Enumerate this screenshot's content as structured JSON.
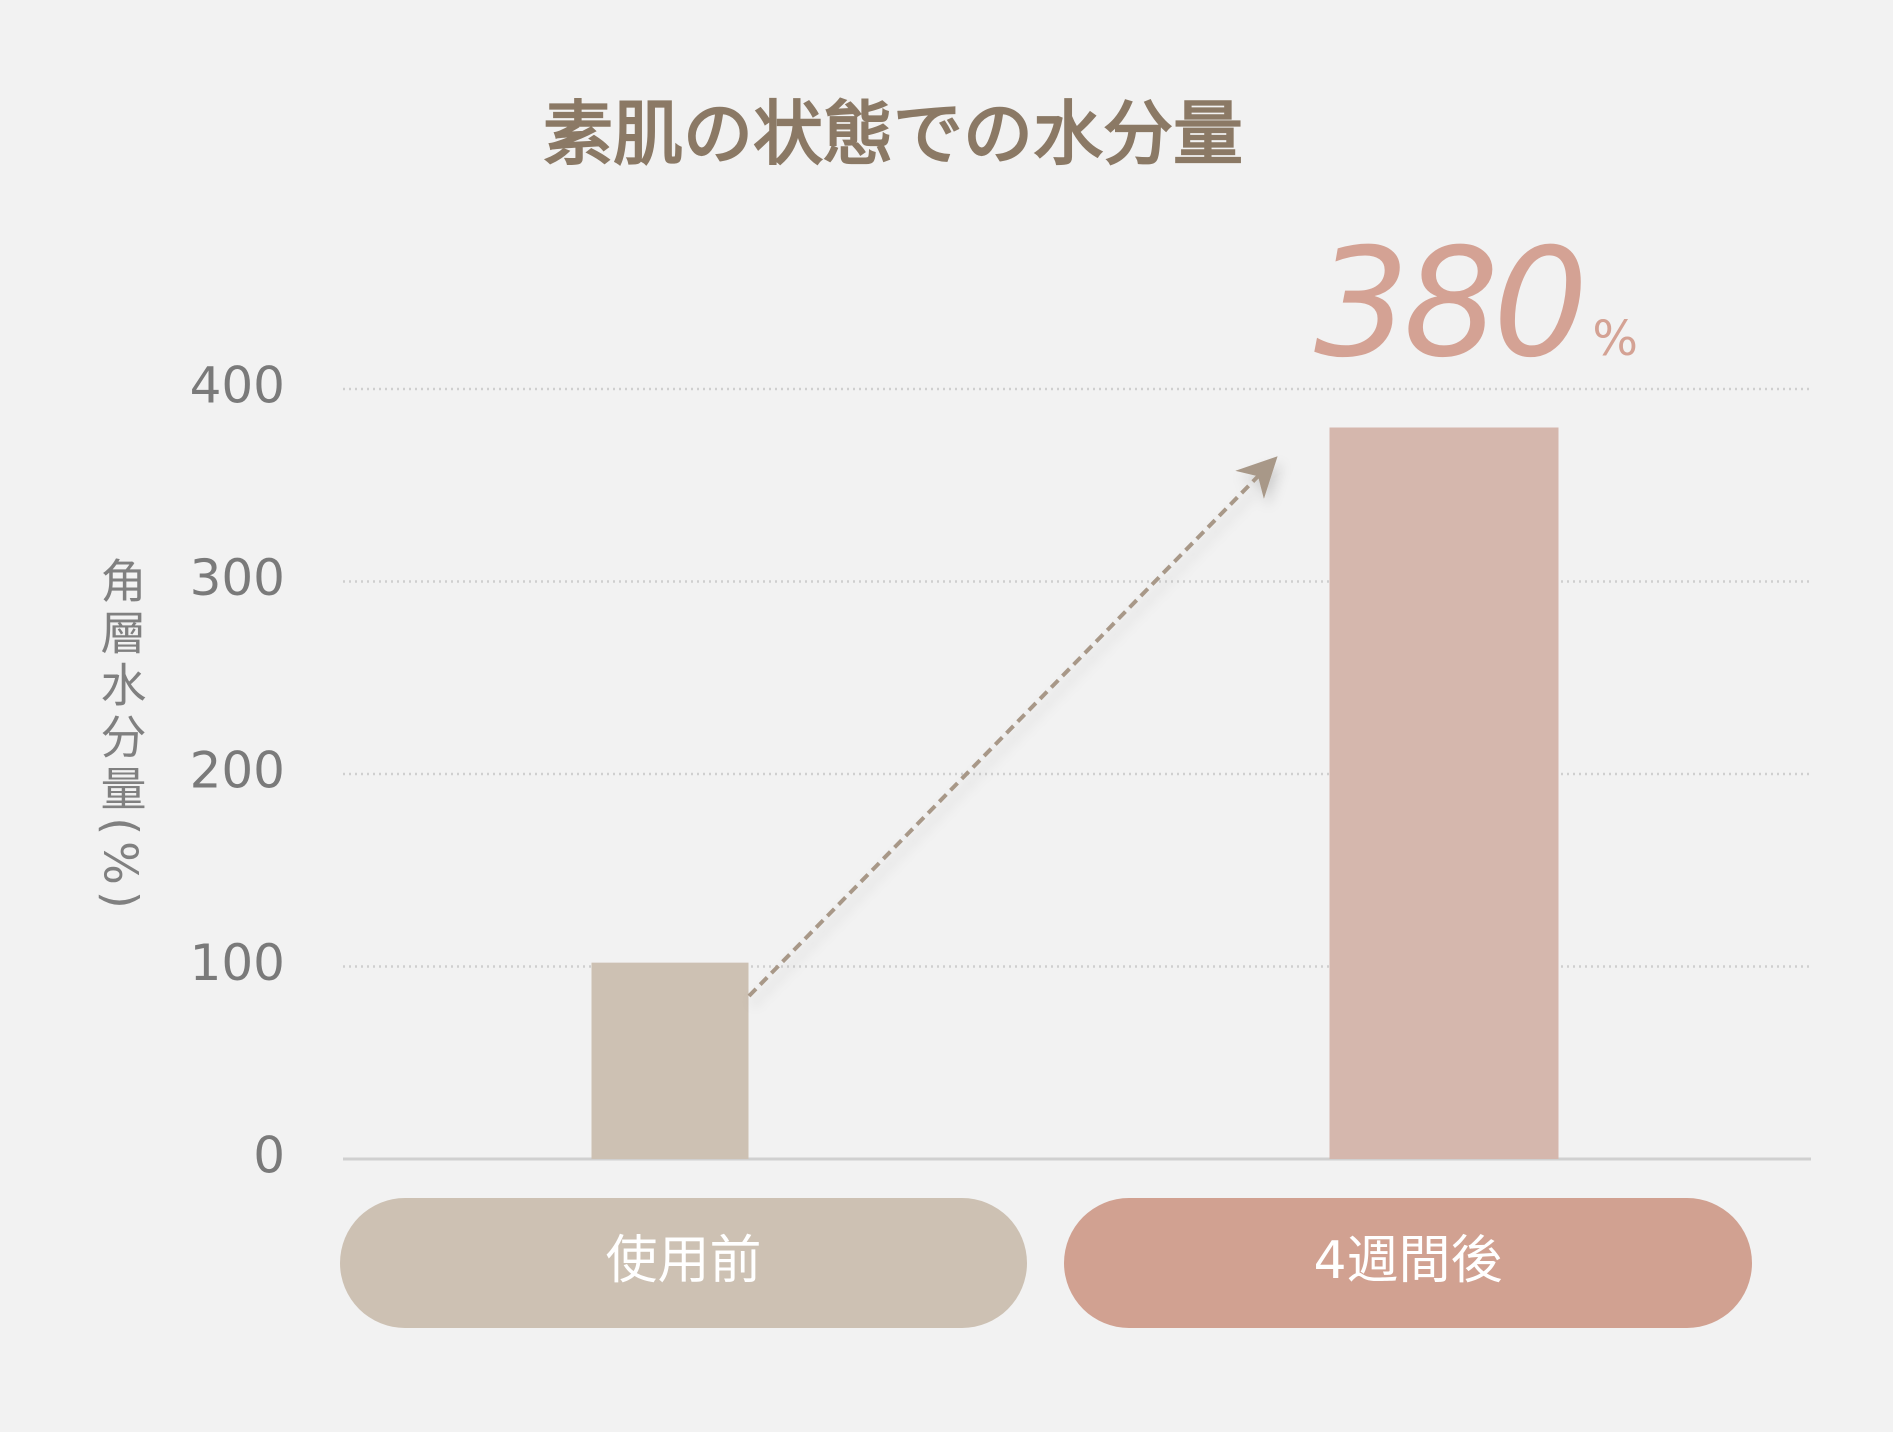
{
  "chart_data": {
    "type": "bar",
    "title": "素肌の状態での水分量",
    "y_label": "角層水分量(%)",
    "categories": [
      "使用前",
      "4週間後"
    ],
    "values": [
      102,
      380
    ],
    "value_labels": [
      null,
      "380%"
    ],
    "colors": [
      "#cdc1b3",
      "#d5b7ad"
    ],
    "category_colors": [
      "#cdc1b3",
      "#d1a191"
    ],
    "ylim": [
      0,
      400
    ],
    "yticks": [
      0,
      100,
      200,
      300,
      400
    ],
    "grid": true
  }
}
